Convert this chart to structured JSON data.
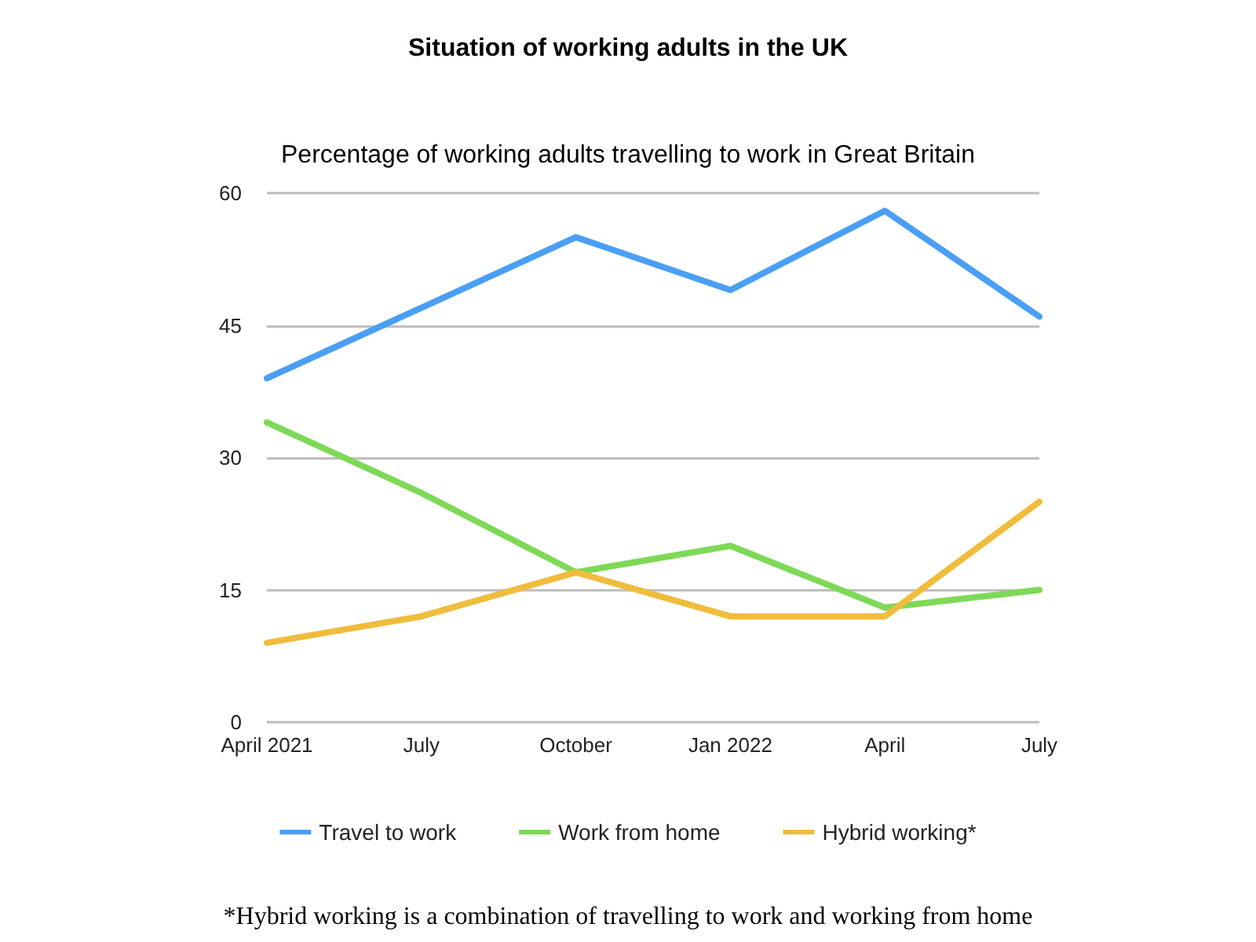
{
  "chart_data": {
    "type": "line",
    "title": "Situation of working adults in the UK",
    "subtitle": "Percentage of working adults travelling to work in Great Britain",
    "categories": [
      "April 2021",
      "July",
      "October",
      "Jan 2022",
      "April",
      "July"
    ],
    "series": [
      {
        "name": "Travel to work",
        "color": "#4a9ff5",
        "values": [
          39,
          47,
          55,
          49,
          58,
          46
        ]
      },
      {
        "name": "Work from home",
        "color": "#7ed957",
        "values": [
          34,
          26,
          17,
          20,
          13,
          15
        ]
      },
      {
        "name": "Hybrid working*",
        "color": "#f0bc3c",
        "values": [
          9,
          12,
          17,
          12,
          12,
          25
        ]
      }
    ],
    "ylim": [
      0,
      60
    ],
    "yticks": [
      0,
      15,
      30,
      45,
      60
    ],
    "grid": "y",
    "legend": "bottom",
    "marker": "none",
    "line_style": "solid",
    "annotations": [
      "*Hybrid working is a combination of travelling to work and working from home"
    ]
  }
}
